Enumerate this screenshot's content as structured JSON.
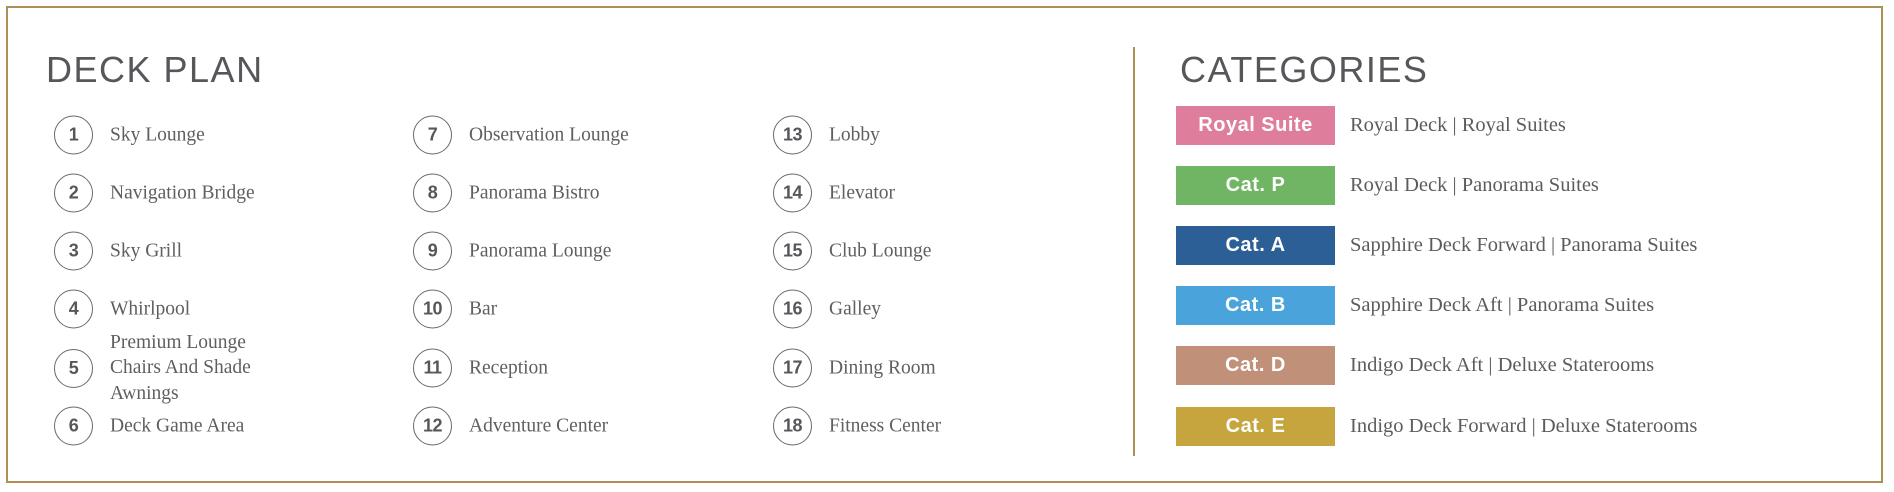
{
  "deck_plan": {
    "title": "DECK PLAN",
    "items": [
      {
        "number": "1",
        "label": "Sky Lounge"
      },
      {
        "number": "2",
        "label": "Navigation Bridge"
      },
      {
        "number": "3",
        "label": "Sky Grill"
      },
      {
        "number": "4",
        "label": "Whirlpool"
      },
      {
        "number": "5",
        "label": "Premium Lounge Chairs And Shade Awnings"
      },
      {
        "number": "6",
        "label": "Deck Game Area"
      },
      {
        "number": "7",
        "label": "Observation Lounge"
      },
      {
        "number": "8",
        "label": "Panorama Bistro"
      },
      {
        "number": "9",
        "label": "Panorama Lounge"
      },
      {
        "number": "10",
        "label": "Bar"
      },
      {
        "number": "11",
        "label": "Reception"
      },
      {
        "number": "12",
        "label": "Adventure Center"
      },
      {
        "number": "13",
        "label": "Lobby"
      },
      {
        "number": "14",
        "label": "Elevator"
      },
      {
        "number": "15",
        "label": "Club Lounge"
      },
      {
        "number": "16",
        "label": "Galley"
      },
      {
        "number": "17",
        "label": "Dining Room"
      },
      {
        "number": "18",
        "label": "Fitness Center"
      }
    ]
  },
  "categories": {
    "title": "CATEGORIES",
    "rows": [
      {
        "badge": "Royal Suite",
        "color": "#de7e9c",
        "description": "Royal Deck | Royal Suites"
      },
      {
        "badge": "Cat. P",
        "color": "#70b563",
        "description": "Royal Deck | Panorama Suites"
      },
      {
        "badge": "Cat. A",
        "color": "#2b5f96",
        "description": "Sapphire Deck Forward | Panorama Suites"
      },
      {
        "badge": "Cat. B",
        "color": "#4ba3dc",
        "description": "Sapphire Deck Aft | Panorama Suites"
      },
      {
        "badge": "Cat. D",
        "color": "#c19079",
        "description": "Indigo Deck Aft | Deluxe Staterooms"
      },
      {
        "badge": "Cat. E",
        "color": "#c7a53e",
        "description": "Indigo Deck Forward | Deluxe Staterooms"
      }
    ]
  },
  "theme": {
    "border_gold": "#ac9156",
    "title_gray": "#56575b",
    "text_gray": "#5e5f61"
  }
}
